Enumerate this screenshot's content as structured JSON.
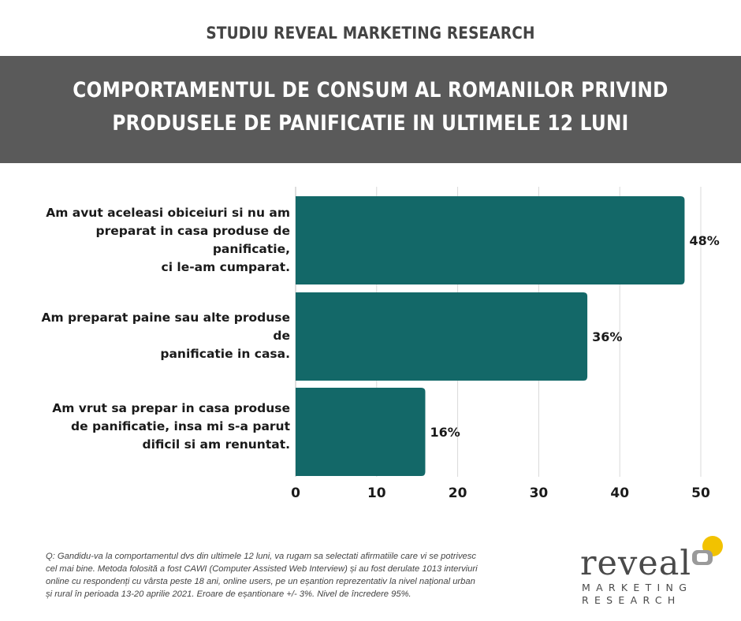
{
  "header": {
    "top_title": "STUDIU REVEAL MARKETING RESEARCH",
    "banner_line1": "COMPORTAMENTUL DE CONSUM AL ROMANILOR PRIVIND",
    "banner_line2": "PRODUSELE DE PANIFICATIE IN ULTIMELE 12 LUNI",
    "banner_color": "#5a5a5a"
  },
  "chart_data": {
    "type": "bar",
    "orientation": "horizontal",
    "categories": [
      [
        "Am avut aceleasi obiceiuri si nu am",
        "preparat in casa produse de panificatie,",
        "ci le-am cumparat."
      ],
      [
        "Am preparat paine sau alte produse de",
        "panificatie in casa."
      ],
      [
        "Am vrut sa prepar in casa produse",
        "de panificatie, insa mi s-a parut",
        "dificil si am renuntat."
      ]
    ],
    "values": [
      48,
      36,
      16
    ],
    "value_labels": [
      "48%",
      "36%",
      "16%"
    ],
    "xlim": [
      0,
      50
    ],
    "xticks": [
      0,
      10,
      20,
      30,
      40,
      50
    ],
    "grid": "vertical",
    "bar_color": "#136868",
    "title": "",
    "xlabel": "",
    "ylabel": ""
  },
  "footnote": {
    "line1": "Q: Gandidu-va la comportamentul dvs din ultimele 12 luni, va rugam sa selectati afirmatiile care vi se potrivesc",
    "line2": "cel mai bine. Metoda folosită a fost CAWI (Computer Assisted Web Interview) și au fost derulate 1013 interviuri",
    "line3": "online cu respondenți cu vârsta peste 18 ani, online users, pe un eșantion reprezentativ la nivel național urban",
    "line4": "și rural în perioada 13-20 aprilie 2021. Eroare de eșantionare +/- 3%. Nivel de încredere 95%."
  },
  "logo": {
    "word": "reveal",
    "line1": "MARKETING",
    "line2": "RESEARCH",
    "accent_color": "#f2c200",
    "grey_color": "#9a9a9a"
  }
}
